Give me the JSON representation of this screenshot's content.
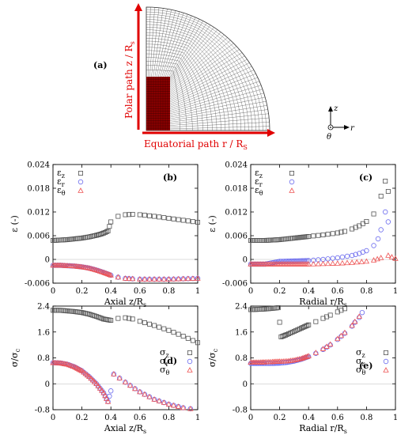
{
  "panel_a": {
    "label": "(a)",
    "polar_label": "Polar path z / R",
    "polar_sub": "s",
    "equatorial_label": "Equatorial path r / R",
    "equatorial_sub": "S",
    "axis_z": "z",
    "axis_r": "r",
    "axis_theta": "θ"
  },
  "colors": {
    "z": "#555555",
    "r": "#6a6aee",
    "theta": "#ee5555",
    "red": "#e00000",
    "mesh_fill": "#8b0000"
  },
  "chart_data": [
    {
      "panel": "(b)",
      "type": "scatter",
      "xlabel": "Axial z/R",
      "xlabel_sub": "s",
      "ylabel": "ε (-)",
      "xlim": [
        0,
        1
      ],
      "ylim": [
        -0.006,
        0.024
      ],
      "yticks": [
        "0.024",
        "0.018",
        "0.012",
        "0.006",
        "0",
        "-0.006"
      ],
      "ytick_values": [
        0.024,
        0.018,
        0.012,
        0.006,
        0,
        -0.006
      ],
      "xticks": [
        "0",
        "0.2",
        "0.4",
        "0.6",
        "0.8",
        "1"
      ],
      "xtick_values": [
        0,
        0.2,
        0.4,
        0.6,
        0.8,
        1
      ],
      "legend": [
        {
          "main": "ε",
          "sub": "z",
          "key": "z",
          "marker": "square"
        },
        {
          "main": "ε",
          "sub": "r",
          "key": "r",
          "marker": "circle"
        },
        {
          "main": "ε",
          "sub": "θ",
          "key": "theta",
          "marker": "triangle"
        }
      ],
      "series": [
        {
          "key": "z",
          "marker": "square",
          "x": [
            0,
            0.05,
            0.1,
            0.15,
            0.2,
            0.25,
            0.3,
            0.33,
            0.36,
            0.38,
            0.4,
            0.45,
            0.5,
            0.55,
            0.6,
            0.7,
            0.8,
            0.9,
            1.0
          ],
          "y": [
            0.0048,
            0.0049,
            0.005,
            0.0052,
            0.0054,
            0.0057,
            0.0061,
            0.0064,
            0.0068,
            0.0072,
            0.0095,
            0.0109,
            0.0113,
            0.0114,
            0.0113,
            0.0109,
            0.0104,
            0.0099,
            0.0094
          ]
        },
        {
          "key": "r",
          "marker": "circle",
          "x": [
            0,
            0.05,
            0.1,
            0.15,
            0.2,
            0.25,
            0.3,
            0.35,
            0.38,
            0.4,
            0.45,
            0.5,
            0.55,
            0.6,
            0.7,
            0.8,
            0.9,
            1.0
          ],
          "y": [
            -0.0015,
            -0.0015,
            -0.0016,
            -0.0017,
            -0.0019,
            -0.0022,
            -0.0027,
            -0.0033,
            -0.0037,
            -0.004,
            -0.0045,
            -0.0048,
            -0.0049,
            -0.005,
            -0.005,
            -0.005,
            -0.0049,
            -0.0048
          ]
        },
        {
          "key": "theta",
          "marker": "triangle",
          "x": [
            0,
            0.05,
            0.1,
            0.15,
            0.2,
            0.25,
            0.3,
            0.35,
            0.38,
            0.4,
            0.45,
            0.5,
            0.55,
            0.6,
            0.7,
            0.8,
            0.9,
            1.0
          ],
          "y": [
            -0.0015,
            -0.0015,
            -0.0016,
            -0.0017,
            -0.0019,
            -0.0022,
            -0.0027,
            -0.0033,
            -0.0037,
            -0.004,
            -0.0045,
            -0.0048,
            -0.0049,
            -0.005,
            -0.005,
            -0.005,
            -0.0049,
            -0.0048
          ]
        }
      ]
    },
    {
      "panel": "(c)",
      "type": "scatter",
      "xlabel": "Radial r/R",
      "xlabel_sub": "s",
      "ylabel": "ε (-)",
      "xlim": [
        0,
        1
      ],
      "ylim": [
        -0.006,
        0.024
      ],
      "yticks": [
        "0.024",
        "0.018",
        "0.012",
        "0.006",
        "0",
        "-0.006"
      ],
      "ytick_values": [
        0.024,
        0.018,
        0.012,
        0.006,
        0,
        -0.006
      ],
      "xticks": [
        "0",
        "0.2",
        "0.4",
        "0.6",
        "0.8",
        "1"
      ],
      "xtick_values": [
        0,
        0.2,
        0.4,
        0.6,
        0.8,
        1
      ],
      "legend": [
        {
          "main": "ε",
          "sub": "z",
          "key": "z",
          "marker": "square"
        },
        {
          "main": "ε",
          "sub": "r",
          "key": "r",
          "marker": "circle"
        },
        {
          "main": "ε",
          "sub": "θ",
          "key": "theta",
          "marker": "triangle"
        }
      ],
      "series": [
        {
          "key": "z",
          "marker": "square",
          "x": [
            0,
            0.05,
            0.1,
            0.15,
            0.2,
            0.25,
            0.3,
            0.4,
            0.5,
            0.6,
            0.65,
            0.7,
            0.75,
            0.8,
            0.85,
            0.9,
            0.93,
            0.95
          ],
          "y": [
            0.0048,
            0.0048,
            0.0048,
            0.0049,
            0.005,
            0.0052,
            0.0054,
            0.0058,
            0.0062,
            0.0067,
            0.0071,
            0.0077,
            0.0085,
            0.0096,
            0.0115,
            0.016,
            0.0198,
            0.0172
          ]
        },
        {
          "key": "r",
          "marker": "circle",
          "x": [
            0,
            0.1,
            0.2,
            0.3,
            0.4,
            0.5,
            0.6,
            0.7,
            0.75,
            0.8,
            0.85,
            0.88,
            0.9,
            0.93,
            0.95
          ],
          "y": [
            -0.0012,
            -0.0012,
            -0.0005,
            -0.0004,
            -0.0003,
            0.0,
            0.0004,
            0.001,
            0.0015,
            0.0022,
            0.0035,
            0.0052,
            0.0075,
            0.012,
            0.0095
          ]
        },
        {
          "key": "theta",
          "marker": "triangle",
          "x": [
            0,
            0.1,
            0.2,
            0.3,
            0.4,
            0.5,
            0.6,
            0.7,
            0.8,
            0.85,
            0.9,
            0.95,
            1.0
          ],
          "y": [
            -0.0012,
            -0.0012,
            -0.0012,
            -0.0012,
            -0.0012,
            -0.0011,
            -0.001,
            -0.0008,
            -0.0005,
            -0.0002,
            0.0004,
            0.001,
            0.0002
          ]
        }
      ]
    },
    {
      "panel": "(d)",
      "type": "scatter",
      "xlabel": "Axial z/R",
      "xlabel_sub": "s",
      "ylabel": "σ/σ",
      "ylabel_sub": "c",
      "xlim": [
        0,
        1
      ],
      "ylim": [
        -0.8,
        2.4
      ],
      "yticks": [
        "2.4",
        "1.6",
        "0.8",
        "0",
        "-0.8"
      ],
      "ytick_values": [
        2.4,
        1.6,
        0.8,
        0,
        -0.8
      ],
      "xticks": [
        "0",
        "0.2",
        "0.4",
        "0.6",
        "0.8",
        "1"
      ],
      "xtick_values": [
        0,
        0.2,
        0.4,
        0.6,
        0.8,
        1
      ],
      "legend": [
        {
          "main": "σ",
          "sub": "z",
          "key": "z",
          "marker": "square"
        },
        {
          "main": "σ",
          "sub": "r",
          "key": "r",
          "marker": "circle"
        },
        {
          "main": "σ",
          "sub": "θ",
          "key": "theta",
          "marker": "triangle"
        }
      ],
      "series": [
        {
          "key": "z",
          "marker": "square",
          "x": [
            0,
            0.05,
            0.1,
            0.15,
            0.2,
            0.25,
            0.3,
            0.35,
            0.4,
            0.45,
            0.5,
            0.55,
            0.6,
            0.7,
            0.8,
            0.9,
            1.0
          ],
          "y": [
            2.27,
            2.27,
            2.25,
            2.23,
            2.2,
            2.15,
            2.08,
            2.0,
            1.96,
            2.02,
            2.04,
            2.0,
            1.93,
            1.8,
            1.65,
            1.47,
            1.27
          ]
        },
        {
          "key": "r",
          "marker": "circle",
          "x": [
            0,
            0.05,
            0.1,
            0.15,
            0.2,
            0.25,
            0.3,
            0.35,
            0.38,
            0.4,
            0.42,
            0.5,
            0.6,
            0.7,
            0.8,
            0.9,
            0.95
          ],
          "y": [
            0.65,
            0.64,
            0.6,
            0.52,
            0.4,
            0.22,
            0.0,
            -0.28,
            -0.55,
            -0.22,
            0.3,
            0.05,
            -0.25,
            -0.48,
            -0.63,
            -0.74,
            -0.77
          ]
        },
        {
          "key": "theta",
          "marker": "triangle",
          "x": [
            0,
            0.05,
            0.1,
            0.15,
            0.2,
            0.25,
            0.3,
            0.35,
            0.38,
            0.42,
            0.5,
            0.6,
            0.7,
            0.8,
            0.9,
            0.95
          ],
          "y": [
            0.65,
            0.64,
            0.6,
            0.52,
            0.4,
            0.22,
            0.0,
            -0.28,
            -0.55,
            0.3,
            0.05,
            -0.25,
            -0.48,
            -0.63,
            -0.74,
            -0.77
          ]
        }
      ]
    },
    {
      "panel": "(e)",
      "type": "scatter",
      "xlabel": "Radial r/R",
      "xlabel_sub": "s",
      "ylabel": "σ/σ",
      "ylabel_sub": "c",
      "xlim": [
        0,
        1
      ],
      "ylim": [
        -0.8,
        2.4
      ],
      "yticks": [
        "2.4",
        "1.6",
        "0.8",
        "0",
        "-0.8"
      ],
      "ytick_values": [
        2.4,
        1.6,
        0.8,
        0,
        -0.8
      ],
      "xticks": [
        "0",
        "0.2",
        "0.4",
        "0.6",
        "0.8",
        "1"
      ],
      "xtick_values": [
        0,
        0.2,
        0.4,
        0.6,
        0.8,
        1
      ],
      "legend": [
        {
          "main": "σ",
          "sub": "z",
          "key": "z",
          "marker": "square"
        },
        {
          "main": "σ",
          "sub": "r",
          "key": "r",
          "marker": "circle"
        },
        {
          "main": "σ",
          "sub": "θ",
          "key": "theta",
          "marker": "triangle"
        }
      ],
      "series": [
        {
          "key": "z",
          "marker": "square",
          "x": [
            0,
            0.05,
            0.1,
            0.15,
            0.19,
            0.2,
            0.21,
            0.25,
            0.3,
            0.35,
            0.4,
            0.45,
            0.5,
            0.55,
            0.6,
            0.65
          ],
          "y": [
            2.29,
            2.3,
            2.31,
            2.33,
            2.35,
            1.9,
            1.45,
            1.52,
            1.62,
            1.72,
            1.82,
            1.92,
            2.02,
            2.12,
            2.22,
            2.32
          ]
        },
        {
          "key": "r",
          "marker": "circle",
          "x": [
            0,
            0.05,
            0.1,
            0.15,
            0.2,
            0.25,
            0.3,
            0.35,
            0.4,
            0.45,
            0.5,
            0.55,
            0.6,
            0.65,
            0.7,
            0.72,
            0.75,
            0.77
          ],
          "y": [
            0.63,
            0.63,
            0.63,
            0.63,
            0.64,
            0.66,
            0.7,
            0.76,
            0.84,
            0.94,
            1.06,
            1.2,
            1.37,
            1.56,
            1.78,
            1.9,
            2.05,
            2.2
          ]
        },
        {
          "key": "theta",
          "marker": "triangle",
          "x": [
            0,
            0.05,
            0.1,
            0.15,
            0.2,
            0.25,
            0.3,
            0.35,
            0.4,
            0.45,
            0.5,
            0.55,
            0.6,
            0.65,
            0.7,
            0.72,
            0.75
          ],
          "y": [
            0.66,
            0.66,
            0.67,
            0.68,
            0.69,
            0.7,
            0.73,
            0.78,
            0.86,
            0.96,
            1.08,
            1.22,
            1.39,
            1.58,
            1.8,
            1.92,
            2.08
          ]
        }
      ]
    }
  ]
}
